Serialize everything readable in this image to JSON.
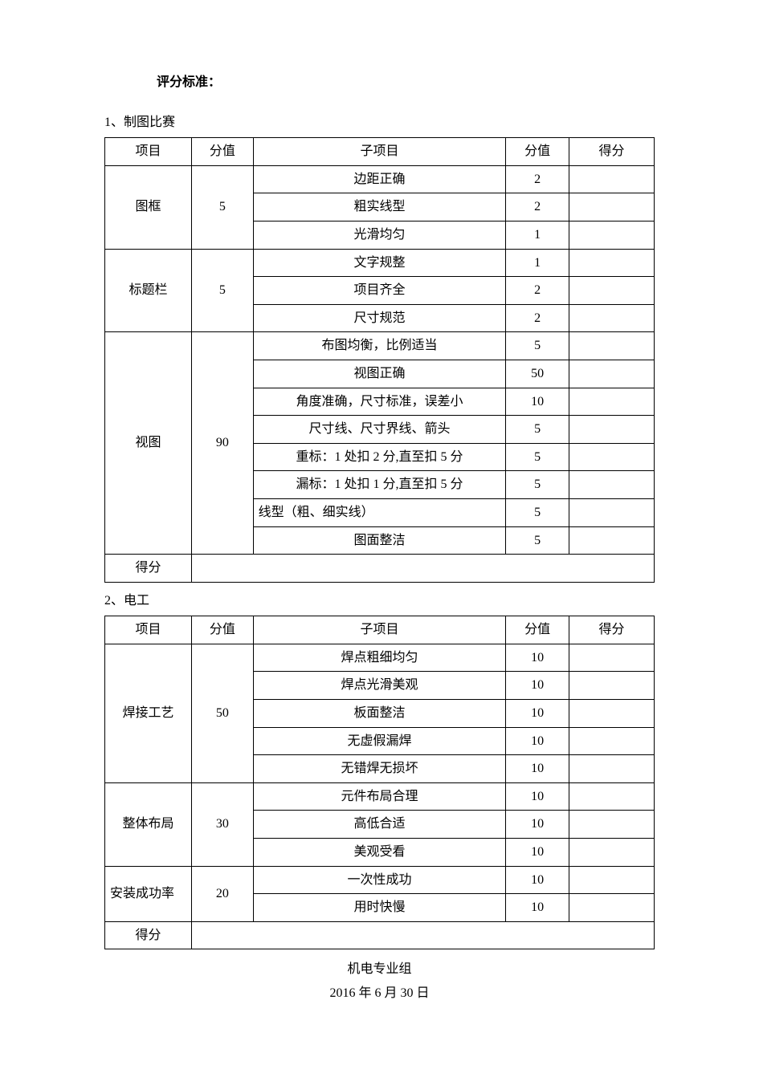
{
  "heading": "评分标准：",
  "section1": {
    "label": "1、制图比赛",
    "headers": [
      "项目",
      "分值",
      "子项目",
      "分值",
      "得分"
    ],
    "groups": [
      {
        "item": "图框",
        "points": "5",
        "subitems": [
          {
            "name": "边距正确",
            "points": "2",
            "score": ""
          },
          {
            "name": "粗实线型",
            "points": "2",
            "score": ""
          },
          {
            "name": "光滑均匀",
            "points": "1",
            "score": ""
          }
        ]
      },
      {
        "item": "标题栏",
        "points": "5",
        "subitems": [
          {
            "name": "文字规整",
            "points": "1",
            "score": ""
          },
          {
            "name": "项目齐全",
            "points": "2",
            "score": ""
          },
          {
            "name": "尺寸规范",
            "points": "2",
            "score": ""
          }
        ]
      },
      {
        "item": "视图",
        "points": "90",
        "subitems": [
          {
            "name": "布图均衡，比例适当",
            "points": "5",
            "score": ""
          },
          {
            "name": "视图正确",
            "points": "50",
            "score": ""
          },
          {
            "name": "角度准确，尺寸标准，误差小",
            "points": "10",
            "score": ""
          },
          {
            "name": "尺寸线、尺寸界线、箭头",
            "points": "5",
            "score": ""
          },
          {
            "name": "重标：1 处扣 2 分,直至扣 5 分",
            "points": "5",
            "score": ""
          },
          {
            "name": "漏标：1 处扣 1 分,直至扣 5 分",
            "points": "5",
            "score": ""
          },
          {
            "name": "线型（粗、细实线）",
            "points": "5",
            "score": "",
            "align": "left"
          },
          {
            "name": "图面整洁",
            "points": "5",
            "score": ""
          }
        ]
      }
    ],
    "totalLabel": "得分"
  },
  "section2": {
    "label": "2、电工",
    "headers": [
      "项目",
      "分值",
      "子项目",
      "分值",
      "得分"
    ],
    "groups": [
      {
        "item": "焊接工艺",
        "points": "50",
        "subitems": [
          {
            "name": "焊点粗细均匀",
            "points": "10",
            "score": ""
          },
          {
            "name": "焊点光滑美观",
            "points": "10",
            "score": ""
          },
          {
            "name": "板面整洁",
            "points": "10",
            "score": ""
          },
          {
            "name": "无虚假漏焊",
            "points": "10",
            "score": ""
          },
          {
            "name": "无错焊无损坏",
            "points": "10",
            "score": ""
          }
        ]
      },
      {
        "item": "整体布局",
        "points": "30",
        "subitems": [
          {
            "name": "元件布局合理",
            "points": "10",
            "score": ""
          },
          {
            "name": "高低合适",
            "points": "10",
            "score": ""
          },
          {
            "name": "美观受看",
            "points": "10",
            "score": ""
          }
        ]
      },
      {
        "item": "安装成功率",
        "itemAlign": "left",
        "points": "20",
        "subitems": [
          {
            "name": "一次性成功",
            "points": "10",
            "score": ""
          },
          {
            "name": "用时快慢",
            "points": "10",
            "score": ""
          }
        ]
      }
    ],
    "totalLabel": "得分"
  },
  "footer": {
    "line1": "机电专业组",
    "line2": "2016 年 6 月 30 日"
  }
}
